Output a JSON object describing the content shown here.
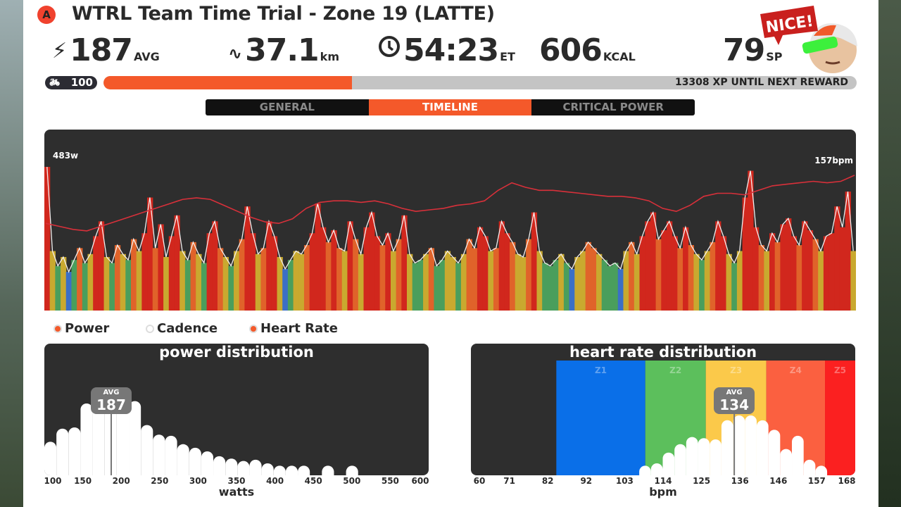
{
  "header": {
    "badge": "A",
    "title": "WTRL Team Time Trial - Zone 19 (LATTE)"
  },
  "stats": [
    {
      "icon": "lightning-icon",
      "value": "187",
      "unit": "AVG"
    },
    {
      "icon": "route-icon",
      "value": "37.1",
      "unit": "km"
    },
    {
      "icon": "clock-icon",
      "value": "54:23",
      "unit": "ET"
    },
    {
      "icon": "",
      "value": "606",
      "unit": "KCAL"
    },
    {
      "icon": "",
      "value": "79",
      "unit": "SP"
    }
  ],
  "mascot": {
    "speech": "NICE!"
  },
  "level": {
    "icon": "cyclist-icon",
    "value": "100"
  },
  "xp": {
    "progress_pct": 33,
    "text": "13308 XP UNTIL NEXT REWARD",
    "fill_color": "#f4592a"
  },
  "tabs": [
    {
      "label": "GENERAL",
      "active": false
    },
    {
      "label": "TIMELINE",
      "active": true
    },
    {
      "label": "CRITICAL POWER",
      "active": false
    }
  ],
  "timeline": {
    "power_max_label": "483w",
    "hr_max_label": "157bpm",
    "power_range": [
      0,
      483
    ],
    "hr_range": [
      60,
      157
    ],
    "zone_colors": [
      "#3b6fc6",
      "#4a9e5c",
      "#c9a92f",
      "#e0632a",
      "#d1271d"
    ],
    "hr_color": "#d8303a",
    "power": [
      483,
      200,
      150,
      180,
      130,
      170,
      210,
      160,
      190,
      250,
      300,
      180,
      160,
      220,
      190,
      170,
      240,
      200,
      260,
      380,
      210,
      290,
      180,
      250,
      320,
      200,
      170,
      230,
      190,
      160,
      260,
      300,
      210,
      180,
      150,
      200,
      240,
      350,
      260,
      190,
      210,
      300,
      250,
      180,
      140,
      170,
      200,
      190,
      220,
      260,
      360,
      280,
      230,
      270,
      210,
      200,
      300,
      240,
      190,
      280,
      330,
      250,
      220,
      260,
      200,
      240,
      320,
      190,
      160,
      170,
      190,
      210,
      150,
      170,
      200,
      180,
      160,
      190,
      240,
      210,
      280,
      250,
      200,
      210,
      300,
      260,
      230,
      190,
      180,
      240,
      330,
      200,
      160,
      150,
      170,
      190,
      160,
      140,
      180,
      200,
      230,
      210,
      190,
      170,
      150,
      160,
      140,
      200,
      230,
      190,
      250,
      300,
      330,
      240,
      270,
      300,
      250,
      210,
      280,
      220,
      190,
      170,
      200,
      230,
      300,
      250,
      190,
      160,
      200,
      380,
      470,
      280,
      220,
      200,
      260,
      230,
      290,
      310,
      250,
      220,
      300,
      270,
      240,
      200,
      250,
      260,
      350,
      280,
      400,
      200
    ],
    "hr": [
      118,
      116,
      114,
      113,
      116,
      119,
      122,
      125,
      128,
      131,
      134,
      135,
      134,
      130,
      126,
      122,
      119,
      118,
      121,
      128,
      132,
      133,
      133,
      132,
      133,
      131,
      128,
      126,
      127,
      128,
      130,
      131,
      133,
      140,
      145,
      142,
      140,
      140,
      139,
      138,
      137,
      136,
      136,
      135,
      133,
      128,
      126,
      130,
      136,
      138,
      138,
      137,
      140,
      143,
      144,
      145,
      146,
      145,
      146,
      150
    ]
  },
  "legend": [
    {
      "label": "Power",
      "on": true
    },
    {
      "label": "Cadence",
      "on": false
    },
    {
      "label": "Heart Rate",
      "on": true
    }
  ],
  "chart_data": [
    {
      "type": "bar",
      "title": "power distribution",
      "xlabel": "watts",
      "xlim": [
        100,
        600
      ],
      "xticks": [
        "100",
        "150",
        "200",
        "250",
        "300",
        "350",
        "400",
        "450",
        "500",
        "550",
        "600"
      ],
      "bin_start": 100,
      "bin_width": 15.7,
      "values": [
        0.28,
        0.39,
        0.4,
        0.6,
        0.62,
        0.62,
        0.62,
        0.62,
        0.42,
        0.34,
        0.33,
        0.26,
        0.23,
        0.2,
        0.16,
        0.14,
        0.12,
        0.13,
        0.1,
        0.08,
        0.08,
        0.08,
        0,
        0.08,
        0,
        0.08
      ],
      "avg_label": "AVG",
      "avg_value": "187"
    },
    {
      "type": "bar",
      "title": "heart rate distribution",
      "xlabel": "bpm",
      "xlim": [
        60,
        168
      ],
      "xticks": [
        "60",
        "71",
        "82",
        "92",
        "103",
        "114",
        "125",
        "136",
        "146",
        "157",
        "168"
      ],
      "bin_start": 107.3,
      "bin_width": 3.3,
      "values": [
        0.08,
        0.1,
        0.19,
        0.26,
        0.32,
        0.31,
        0.3,
        0.46,
        0.5,
        0.5,
        0.46,
        0.38,
        0.22,
        0.33,
        0.13,
        0.08
      ],
      "zones": [
        {
          "label": "Z1",
          "from": 84,
          "to": 109,
          "color": "#0a6fe8"
        },
        {
          "label": "Z2",
          "from": 109,
          "to": 126,
          "color": "#5cbf5c"
        },
        {
          "label": "Z3",
          "from": 126,
          "to": 143,
          "color": "#fbc94a"
        },
        {
          "label": "Z4",
          "from": 143,
          "to": 159.5,
          "color": "#fb6040"
        },
        {
          "label": "Z5",
          "from": 159.5,
          "to": 168,
          "color": "#fb2020"
        }
      ],
      "avg_label": "AVG",
      "avg_value": "134"
    }
  ]
}
